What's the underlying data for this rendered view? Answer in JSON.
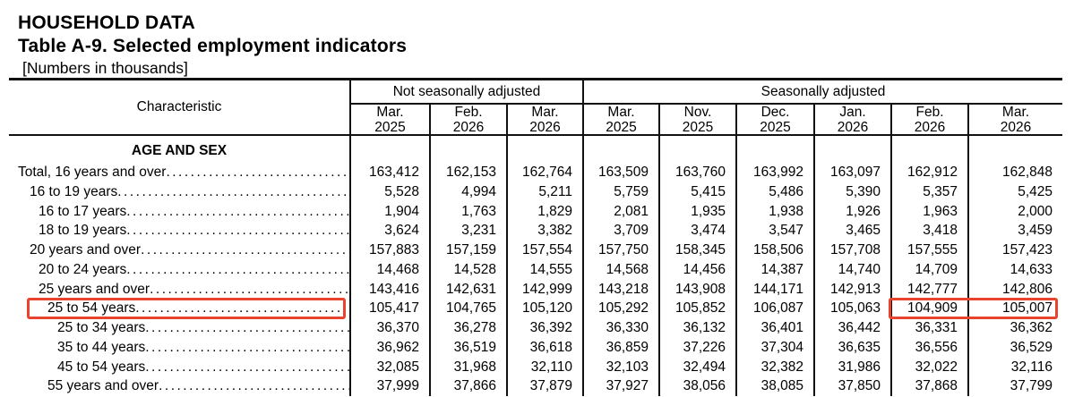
{
  "page": {
    "kicker": "HOUSEHOLD DATA",
    "title": "Table A-9. Selected employment indicators",
    "subtitle": "[Numbers in thousands]"
  },
  "table": {
    "characteristic_label": "Characteristic",
    "groups": [
      {
        "label": "Not seasonally adjusted"
      },
      {
        "label": "Seasonally adjusted"
      }
    ],
    "columns": [
      {
        "month": "Mar.",
        "year": "2025"
      },
      {
        "month": "Feb.",
        "year": "2026"
      },
      {
        "month": "Mar.",
        "year": "2026"
      },
      {
        "month": "Mar.",
        "year": "2025"
      },
      {
        "month": "Nov.",
        "year": "2025"
      },
      {
        "month": "Dec.",
        "year": "2025"
      },
      {
        "month": "Jan.",
        "year": "2026"
      },
      {
        "month": "Feb.",
        "year": "2026"
      },
      {
        "month": "Mar.",
        "year": "2026"
      }
    ],
    "section_label": "AGE AND SEX",
    "highlight_color": "#e8432c",
    "rows": [
      {
        "label": "Total, 16 years and over",
        "indent": 0,
        "values": [
          "163,412",
          "162,153",
          "162,764",
          "163,509",
          "163,760",
          "163,992",
          "163,097",
          "162,912",
          "162,848"
        ]
      },
      {
        "label": "16 to 19 years",
        "indent": 1,
        "values": [
          "5,528",
          "4,994",
          "5,211",
          "5,759",
          "5,415",
          "5,486",
          "5,390",
          "5,357",
          "5,425"
        ]
      },
      {
        "label": "16 to 17 years",
        "indent": 2,
        "values": [
          "1,904",
          "1,763",
          "1,829",
          "2,081",
          "1,935",
          "1,938",
          "1,926",
          "1,963",
          "2,000"
        ]
      },
      {
        "label": "18 to 19 years",
        "indent": 2,
        "values": [
          "3,624",
          "3,231",
          "3,382",
          "3,709",
          "3,474",
          "3,547",
          "3,465",
          "3,418",
          "3,459"
        ]
      },
      {
        "label": "20 years and over",
        "indent": 1,
        "values": [
          "157,883",
          "157,159",
          "157,554",
          "157,750",
          "158,345",
          "158,506",
          "157,708",
          "157,555",
          "157,423"
        ]
      },
      {
        "label": "20 to 24 years",
        "indent": 2,
        "values": [
          "14,468",
          "14,528",
          "14,555",
          "14,568",
          "14,456",
          "14,387",
          "14,740",
          "14,709",
          "14,633"
        ]
      },
      {
        "label": "25 years and over",
        "indent": 2,
        "values": [
          "143,416",
          "142,631",
          "142,999",
          "143,218",
          "143,908",
          "144,171",
          "142,913",
          "142,777",
          "142,806"
        ]
      },
      {
        "label": "25 to 54 years",
        "indent": 3,
        "highlight_label": true,
        "highlight_cells": [
          7,
          8
        ],
        "values": [
          "105,417",
          "104,765",
          "105,120",
          "105,292",
          "105,852",
          "106,087",
          "105,063",
          "104,909",
          "105,007"
        ]
      },
      {
        "label": "25 to 34 years",
        "indent": 4,
        "values": [
          "36,370",
          "36,278",
          "36,392",
          "36,330",
          "36,132",
          "36,401",
          "36,442",
          "36,331",
          "36,362"
        ]
      },
      {
        "label": "35 to 44 years",
        "indent": 4,
        "values": [
          "36,962",
          "36,519",
          "36,618",
          "36,859",
          "37,226",
          "37,304",
          "36,635",
          "36,556",
          "36,529"
        ]
      },
      {
        "label": "45 to 54 years",
        "indent": 4,
        "values": [
          "32,085",
          "31,968",
          "32,110",
          "32,103",
          "32,494",
          "32,382",
          "31,986",
          "32,022",
          "32,116"
        ]
      },
      {
        "label": "55 years and over",
        "indent": 3,
        "values": [
          "37,999",
          "37,866",
          "37,879",
          "37,927",
          "38,056",
          "38,085",
          "37,850",
          "37,868",
          "37,799"
        ]
      }
    ]
  }
}
